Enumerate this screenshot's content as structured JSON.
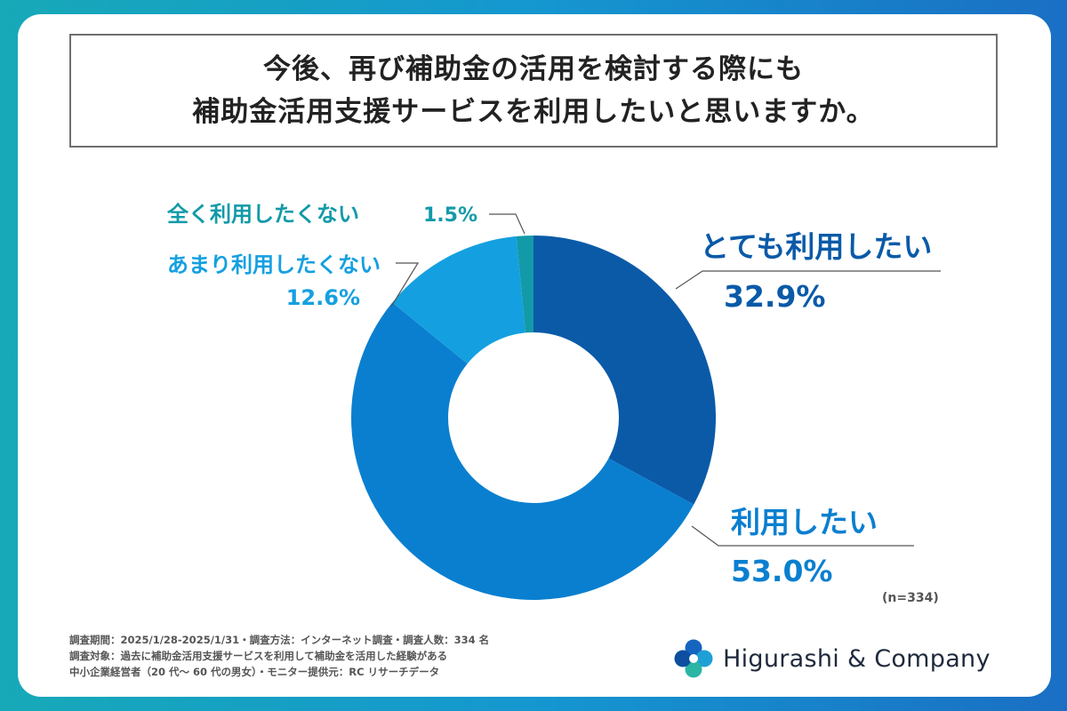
{
  "title": {
    "line1": "今後、再び補助金の活用を検討する際にも",
    "line2": "補助金活用支援サービスを利用したいと思いますか。"
  },
  "chart_data": {
    "type": "pie",
    "donut": true,
    "categories": [
      "とても利用したい",
      "利用したい",
      "あまり利用したくない",
      "全く利用したくない"
    ],
    "values": [
      32.9,
      53.0,
      12.6,
      1.5
    ],
    "value_labels": [
      "32.9%",
      "53.0%",
      "12.6%",
      "1.5%"
    ],
    "colors": [
      "#0a5aa8",
      "#0a7fd0",
      "#14a0e0",
      "#129aa8"
    ],
    "note": "(n=334)"
  },
  "footnote": {
    "line1": "調査期間：2025/1/28-2025/1/31・調査方法：インターネット調査・調査人数：334 名",
    "line2": "調査対象：過去に補助金活用支援サービスを利用して補助金を活用した経験がある",
    "line3": "中小企業経営者（20 代〜 60 代の男女）・モニター提供元：RC リサーチデータ"
  },
  "brand": {
    "name": "Higurashi & Company",
    "logo_icon": "flower-logo-icon",
    "logo_colors": [
      "#1565c0",
      "#1ea0d6",
      "#2bb5a4",
      "#0d4f9e",
      "#22a6c8"
    ]
  },
  "colors": {
    "background_gradient": [
      "#17a9b8",
      "#1a6fc4"
    ],
    "card": "#ffffff",
    "title_text": "#222222",
    "leader_line": "#555555"
  }
}
